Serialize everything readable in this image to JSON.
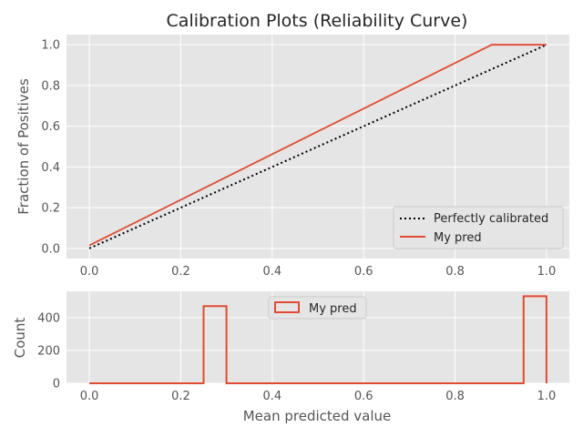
{
  "chart_data": [
    {
      "type": "line",
      "title": "Calibration Plots  (Reliability Curve)",
      "xlabel": "",
      "ylabel": "Fraction of Positives",
      "xlim": [
        -0.05,
        1.05
      ],
      "ylim": [
        -0.05,
        1.05
      ],
      "xticks": [
        "0.0",
        "0.2",
        "0.4",
        "0.6",
        "0.8",
        "1.0"
      ],
      "yticks": [
        "0.0",
        "0.2",
        "0.4",
        "0.6",
        "0.8",
        "1.0"
      ],
      "grid": true,
      "legend_position": "lower right",
      "series": [
        {
          "name": "Perfectly calibrated",
          "style": "dotted",
          "color": "#000000",
          "x": [
            0,
            1
          ],
          "y": [
            0,
            1
          ]
        },
        {
          "name": "My pred",
          "style": "solid",
          "color": "#E24A33",
          "x": [
            0,
            0.88,
            1.0
          ],
          "y": [
            0.015,
            1.0,
            1.0
          ]
        }
      ]
    },
    {
      "type": "bar",
      "subtype": "histogram-step",
      "xlabel": "Mean predicted value",
      "ylabel": "Count",
      "xlim": [
        -0.05,
        1.05
      ],
      "ylim": [
        0,
        560
      ],
      "xticks": [
        "0.0",
        "0.2",
        "0.4",
        "0.6",
        "0.8",
        "1.0"
      ],
      "yticks": [
        "0",
        "200",
        "400"
      ],
      "grid": true,
      "legend_position": "upper center",
      "series": [
        {
          "name": "My pred",
          "color": "#E24A33",
          "bins": [
            0,
            0.05,
            0.1,
            0.15,
            0.2,
            0.25,
            0.3,
            0.35,
            0.4,
            0.45,
            0.5,
            0.55,
            0.6,
            0.65,
            0.7,
            0.75,
            0.8,
            0.85,
            0.9,
            0.95,
            1.0
          ],
          "counts": [
            0,
            0,
            0,
            0,
            0,
            470,
            0,
            0,
            0,
            0,
            0,
            0,
            0,
            0,
            0,
            0,
            0,
            0,
            0,
            530
          ]
        }
      ]
    }
  ]
}
